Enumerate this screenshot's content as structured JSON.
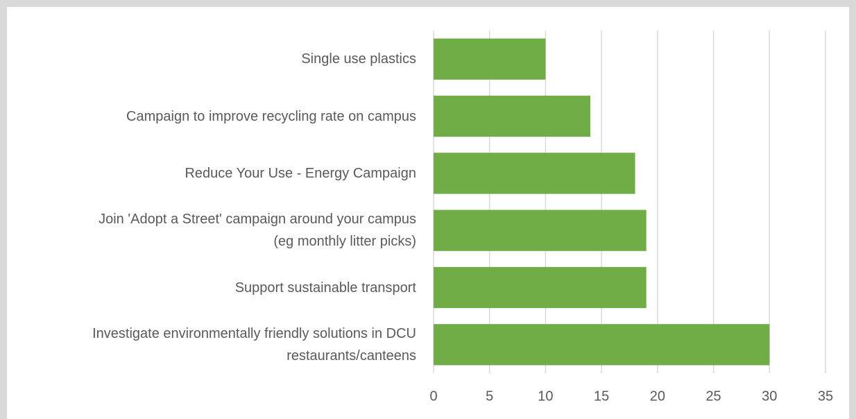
{
  "chart_data": {
    "type": "hbar",
    "categories": [
      "Single use plastics",
      "Campaign to improve recycling rate on campus",
      "Reduce Your Use - Energy Campaign",
      "Join 'Adopt a Street' campaign around your campus\n(eg monthly litter picks)",
      "Support sustainable transport",
      "Investigate environmentally friendly solutions in DCU\nrestaurants/canteens"
    ],
    "values": [
      10,
      14,
      18,
      19,
      19,
      30
    ],
    "color": "#70ad47",
    "xlim": [
      0,
      35
    ],
    "xticks": [
      0,
      5,
      10,
      15,
      20,
      25,
      30,
      35
    ],
    "grid": true
  }
}
